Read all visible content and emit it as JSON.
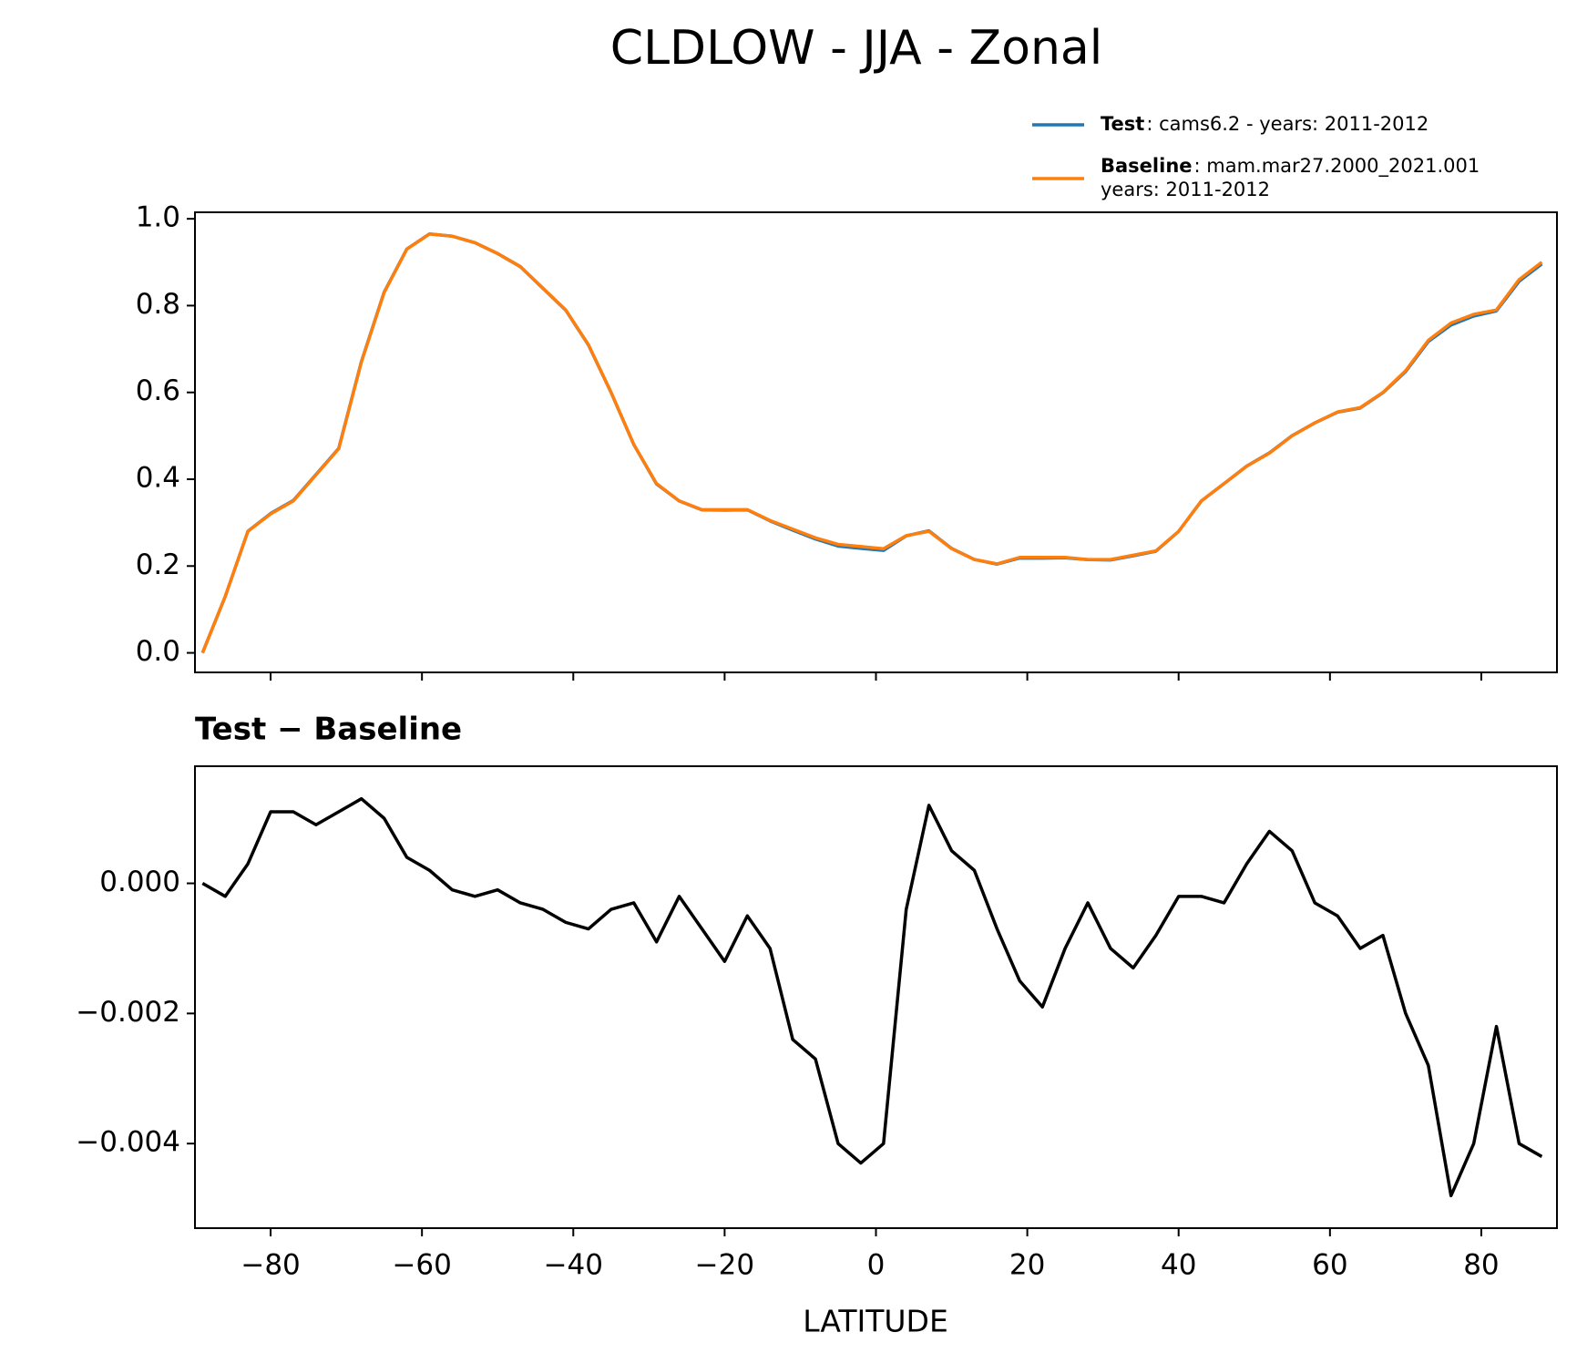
{
  "chart_data": [
    {
      "type": "line",
      "title": "CLDLOW - JJA - Zonal",
      "x": [
        -89,
        -86,
        -83,
        -80,
        -77,
        -74,
        -71,
        -68,
        -65,
        -62,
        -59,
        -56,
        -53,
        -50,
        -47,
        -44,
        -41,
        -38,
        -35,
        -32,
        -29,
        -26,
        -23,
        -20,
        -17,
        -14,
        -11,
        -8,
        -5,
        -2,
        1,
        4,
        7,
        10,
        13,
        16,
        19,
        22,
        25,
        28,
        31,
        34,
        37,
        40,
        43,
        46,
        49,
        52,
        55,
        58,
        61,
        64,
        67,
        70,
        73,
        76,
        79,
        82,
        85,
        88
      ],
      "series": [
        {
          "name": "Test",
          "legend_lines": [
            ": cams6.2 - years: 2011-2012"
          ],
          "color": "#1f77b4",
          "values": [
            0.0,
            0.1298,
            0.2803,
            0.3211,
            0.3511,
            0.4109,
            0.4711,
            0.6713,
            0.831,
            0.9304,
            0.9652,
            0.9599,
            0.9448,
            0.9199,
            0.8897,
            0.8396,
            0.7894,
            0.7093,
            0.5996,
            0.4797,
            0.3891,
            0.3498,
            0.3293,
            0.3288,
            0.3295,
            0.304,
            0.2826,
            0.2623,
            0.246,
            0.2407,
            0.236,
            0.2696,
            0.2812,
            0.2405,
            0.2152,
            0.2043,
            0.2185,
            0.2181,
            0.219,
            0.2147,
            0.214,
            0.2237,
            0.2342,
            0.2798,
            0.3498,
            0.3897,
            0.4303,
            0.4608,
            0.5005,
            0.5297,
            0.5545,
            0.564,
            0.5992,
            0.648,
            0.7172,
            0.7552,
            0.776,
            0.7878,
            0.856,
            0.8958
          ]
        },
        {
          "name": "Baseline",
          "legend_lines": [
            ": mam.mar27.2000_2021.001",
            "years: 2011-2012"
          ],
          "color": "#ff7f0e",
          "values": [
            0.0,
            0.13,
            0.28,
            0.32,
            0.35,
            0.41,
            0.47,
            0.67,
            0.83,
            0.93,
            0.965,
            0.96,
            0.945,
            0.92,
            0.89,
            0.84,
            0.79,
            0.71,
            0.6,
            0.48,
            0.39,
            0.35,
            0.33,
            0.33,
            0.33,
            0.305,
            0.285,
            0.265,
            0.25,
            0.245,
            0.24,
            0.27,
            0.28,
            0.24,
            0.215,
            0.205,
            0.22,
            0.22,
            0.22,
            0.215,
            0.215,
            0.225,
            0.235,
            0.28,
            0.35,
            0.39,
            0.43,
            0.46,
            0.5,
            0.53,
            0.555,
            0.565,
            0.6,
            0.65,
            0.72,
            0.76,
            0.78,
            0.79,
            0.86,
            0.9
          ]
        }
      ],
      "xlim": [
        -90,
        90
      ],
      "xticks": [
        -80,
        -60,
        -40,
        -20,
        0,
        20,
        40,
        60,
        80
      ],
      "ylim": [
        -0.045,
        1.015
      ],
      "yticks": [
        {
          "value": 0,
          "label": "0.0"
        },
        {
          "value": 0.2,
          "label": "0.2"
        },
        {
          "value": 0.4,
          "label": "0.4"
        },
        {
          "value": 0.6,
          "label": "0.6"
        },
        {
          "value": 0.8,
          "label": "0.8"
        },
        {
          "value": 1,
          "label": "1.0"
        }
      ]
    },
    {
      "type": "line",
      "title": "Test − Baseline",
      "xlabel": "LATITUDE",
      "x": [
        -89,
        -86,
        -83,
        -80,
        -77,
        -74,
        -71,
        -68,
        -65,
        -62,
        -59,
        -56,
        -53,
        -50,
        -47,
        -44,
        -41,
        -38,
        -35,
        -32,
        -29,
        -26,
        -23,
        -20,
        -17,
        -14,
        -11,
        -8,
        -5,
        -2,
        1,
        4,
        7,
        10,
        13,
        16,
        19,
        22,
        25,
        28,
        31,
        34,
        37,
        40,
        43,
        46,
        49,
        52,
        55,
        58,
        61,
        64,
        67,
        70,
        73,
        76,
        79,
        82,
        85,
        88
      ],
      "color": "#000000",
      "values": [
        0.0,
        -0.0002,
        0.0003,
        0.0011,
        0.0011,
        0.0009,
        0.0011,
        0.0013,
        0.001,
        0.0004,
        0.0002,
        -0.0001,
        -0.0002,
        -0.0001,
        -0.0003,
        -0.0004,
        -0.0006,
        -0.0007,
        -0.0004,
        -0.0003,
        -0.0009,
        -0.0002,
        -0.0007,
        -0.0012,
        -0.0005,
        -0.001,
        -0.0024,
        -0.0027,
        -0.004,
        -0.0043,
        -0.004,
        -0.0004,
        0.0012,
        0.0005,
        0.0002,
        -0.0007,
        -0.0015,
        -0.0019,
        -0.001,
        -0.0003,
        -0.001,
        -0.0013,
        -0.0008,
        -0.0002,
        -0.0002,
        -0.0003,
        0.0003,
        0.0008,
        0.0005,
        -0.0003,
        -0.0005,
        -0.001,
        -0.0008,
        -0.002,
        -0.0028,
        -0.0048,
        -0.004,
        -0.0022,
        -0.004,
        -0.0042
      ],
      "xlim": [
        -90,
        90
      ],
      "xticks": [
        {
          "value": -80,
          "label": "−80"
        },
        {
          "value": -60,
          "label": "−60"
        },
        {
          "value": -40,
          "label": "−40"
        },
        {
          "value": -20,
          "label": "−20"
        },
        0,
        20,
        40,
        60,
        80
      ],
      "ylim": [
        -0.0053,
        0.0018
      ],
      "yticks": [
        {
          "value": -0.004,
          "label": "−0.004"
        },
        {
          "value": -0.002,
          "label": "−0.002"
        },
        {
          "value": 0,
          "label": "0.000"
        }
      ]
    }
  ]
}
